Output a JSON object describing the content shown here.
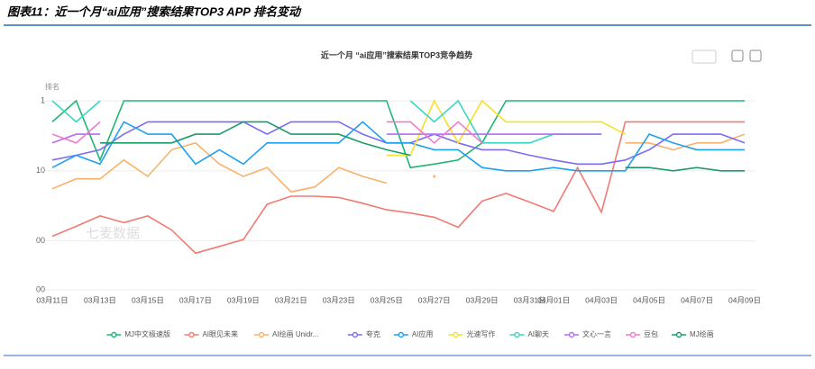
{
  "header": {
    "title": "图表11：近一个月“ai应用”搜索结果TOP3 APP 排名变动"
  },
  "chart_data": {
    "type": "line",
    "title": "近一个月 “ai应用”搜索结果TOP3竞争趋势",
    "y_label": "排名",
    "watermark": "七麦数据",
    "log_scale": true,
    "y_inverted": true,
    "grid": true,
    "legend": "bottom",
    "categories": [
      "03月11日",
      null,
      "03月13日",
      null,
      "03月15日",
      null,
      "03月17日",
      null,
      "03月19日",
      null,
      "03月21日",
      null,
      "03月23日",
      null,
      "03月25日",
      null,
      "03月27日",
      null,
      "03月29日",
      null,
      "03月31日",
      "04月01日",
      null,
      "04月03日",
      null,
      "04月05日",
      null,
      "04月07日",
      null,
      "04月09日"
    ],
    "ylim": [
      1,
      500
    ],
    "yticks": [
      1,
      10,
      {
        "value": 100,
        "label": "00"
      },
      {
        "value": 500,
        "label": "00"
      }
    ],
    "series": [
      {
        "name": "MJ中文极速版",
        "color": "#22b573",
        "values": [
          2,
          1,
          7,
          1,
          1,
          1,
          1,
          1,
          1,
          1,
          1,
          1,
          1,
          1,
          1,
          9,
          8,
          7,
          4,
          1,
          1,
          1,
          1,
          1,
          1,
          1,
          1,
          1,
          1,
          1
        ]
      },
      {
        "name": "AI眼见未来",
        "color": "#f07b72",
        "values": [
          86,
          62,
          44,
          55,
          44,
          70,
          150,
          120,
          96,
          30,
          23,
          23,
          24,
          29,
          36,
          40,
          46,
          64,
          27,
          21,
          28,
          38,
          9,
          39,
          2,
          2,
          2,
          2,
          2,
          2
        ]
      },
      {
        "name": "AI绘画 Unidr...",
        "color": "#f9b26b",
        "values": [
          18,
          13,
          13,
          7,
          12,
          5,
          4,
          8,
          12,
          9,
          20,
          17,
          9,
          12,
          15,
          null,
          12,
          null,
          null,
          null,
          null,
          null,
          null,
          null,
          4,
          4,
          5,
          4,
          4,
          3
        ]
      },
      {
        "name": "夸克",
        "color": "#7b6cf6",
        "values": [
          7,
          6,
          5,
          3,
          2,
          2,
          2,
          2,
          2,
          3,
          2,
          2,
          2,
          3,
          4,
          4,
          3,
          4,
          5,
          5,
          6,
          7,
          8,
          8,
          7,
          5,
          3,
          3,
          3,
          4
        ]
      },
      {
        "name": "AI应用",
        "color": "#1ea0f0",
        "values": [
          9,
          6,
          8,
          2,
          3,
          3,
          8,
          5,
          8,
          4,
          4,
          4,
          4,
          2,
          4,
          4,
          5,
          5,
          9,
          10,
          10,
          9,
          10,
          10,
          10,
          3,
          4,
          5,
          5,
          5
        ]
      },
      {
        "name": "光速写作",
        "color": "#f5e02a",
        "values": [
          null,
          null,
          null,
          null,
          null,
          null,
          null,
          null,
          null,
          null,
          null,
          null,
          null,
          null,
          6,
          6,
          1,
          4,
          1,
          2,
          2,
          2,
          2,
          2,
          3,
          null,
          null,
          null,
          null,
          null
        ]
      },
      {
        "name": "AI聊天",
        "color": "#3dd6c0",
        "values": [
          1,
          2,
          1,
          null,
          null,
          null,
          null,
          null,
          null,
          null,
          null,
          null,
          null,
          null,
          null,
          1,
          2,
          1,
          4,
          4,
          4,
          3,
          3,
          3,
          null,
          null,
          null,
          null,
          null,
          null
        ]
      },
      {
        "name": "文心一言",
        "color": "#b66cf0",
        "values": [
          4,
          3,
          3,
          null,
          null,
          null,
          null,
          null,
          null,
          null,
          null,
          null,
          null,
          null,
          3,
          3,
          3,
          3,
          3,
          3,
          3,
          3,
          3,
          3,
          null,
          null,
          null,
          null,
          null,
          null
        ]
      },
      {
        "name": "豆包",
        "color": "#f07bc8",
        "values": [
          3,
          4,
          2,
          null,
          null,
          null,
          null,
          null,
          null,
          null,
          null,
          null,
          null,
          null,
          2,
          2,
          4,
          2,
          4,
          null,
          null,
          null,
          null,
          null,
          null,
          null,
          null,
          null,
          null,
          null
        ]
      },
      {
        "name": "MJ绘画",
        "color": "#1a9c6a",
        "values": [
          null,
          null,
          4,
          4,
          4,
          4,
          3,
          3,
          2,
          2,
          3,
          3,
          3,
          4,
          5,
          6,
          null,
          null,
          null,
          null,
          null,
          null,
          null,
          null,
          9,
          9,
          10,
          9,
          10,
          10
        ]
      }
    ]
  }
}
